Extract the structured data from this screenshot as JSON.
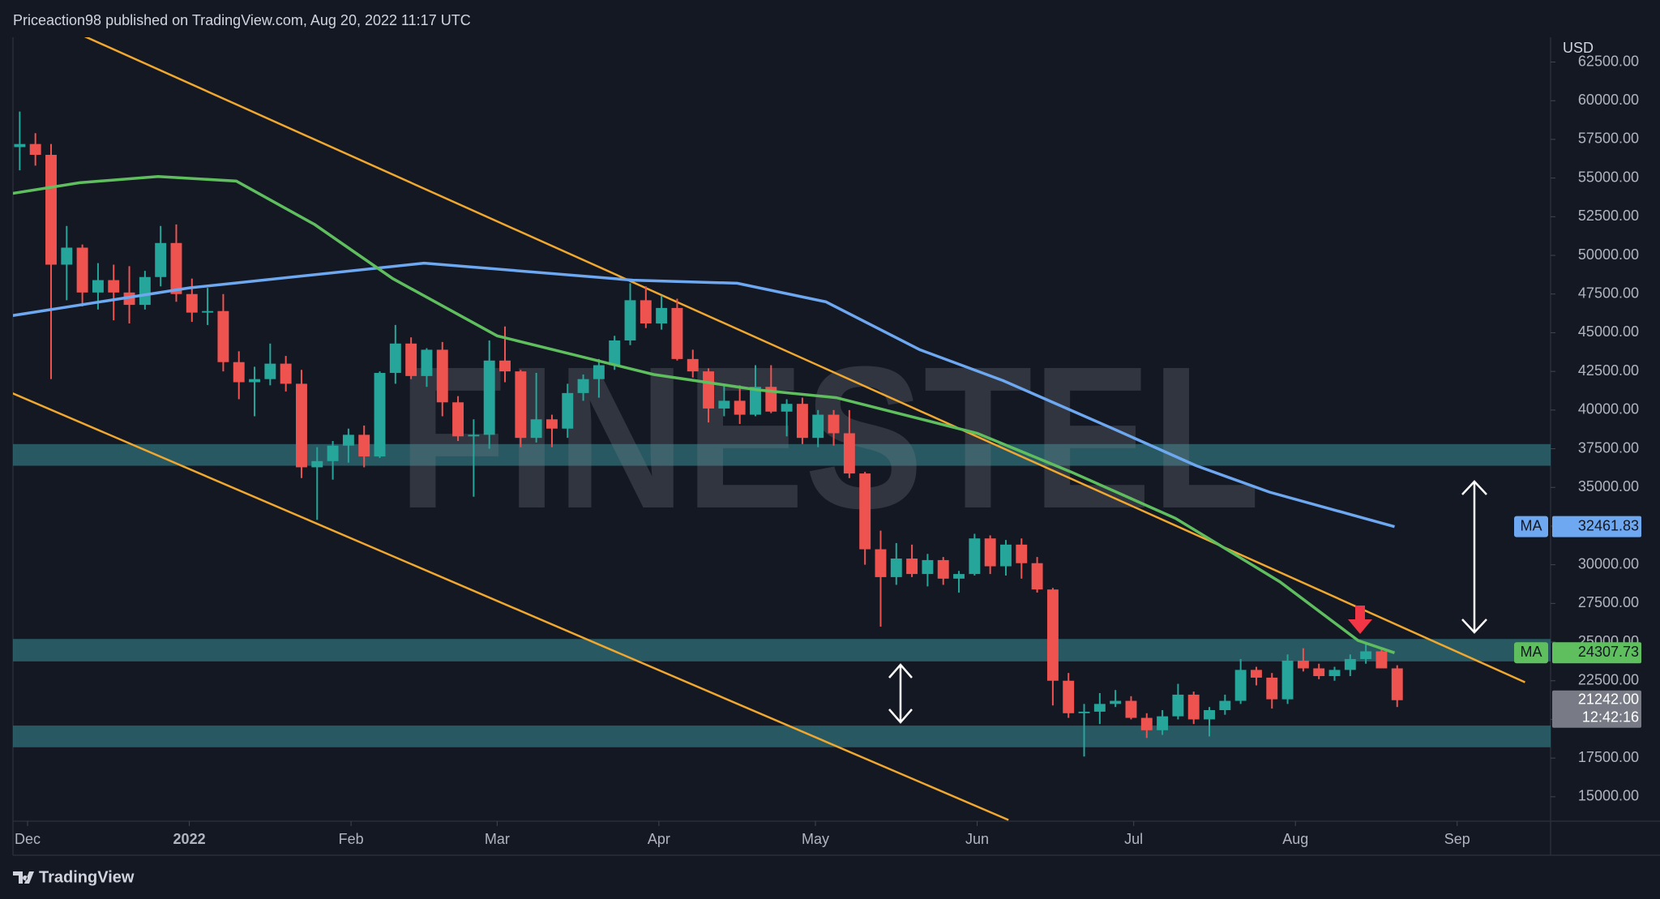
{
  "chart_data": {
    "type": "candlestick",
    "header": "Priceaction98 published on TradingView.com, Aug 20, 2022 11:17 UTC",
    "currency": "USD",
    "watermark": "FINESTEL",
    "footer": "TradingView",
    "up_color": "#26a69a",
    "down_color": "#ef5350",
    "grid": false,
    "xlim": [
      -2.8,
      291.9
    ],
    "ylim": [
      13420,
      64100
    ],
    "xticks": [
      {
        "value": 0,
        "label": "Dec"
      },
      {
        "value": 31,
        "label": "2022"
      },
      {
        "value": 62,
        "label": "Feb"
      },
      {
        "value": 90,
        "label": "Mar"
      },
      {
        "value": 121,
        "label": "Apr"
      },
      {
        "value": 151,
        "label": "May"
      },
      {
        "value": 182,
        "label": "Jun"
      },
      {
        "value": 212,
        "label": "Jul"
      },
      {
        "value": 243,
        "label": "Aug"
      },
      {
        "value": 274,
        "label": "Sep"
      }
    ],
    "yticks": [
      {
        "value": 15000,
        "label": "15000.00"
      },
      {
        "value": 17500,
        "label": "17500.00"
      },
      {
        "value": 20000,
        "label": "20000.00"
      },
      {
        "value": 22500,
        "label": "22500.00"
      },
      {
        "value": 25000,
        "label": "25000.00"
      },
      {
        "value": 27500,
        "label": "27500.00"
      },
      {
        "value": 30000,
        "label": "30000.00"
      },
      {
        "value": 32500,
        "label": "32500.00"
      },
      {
        "value": 35000,
        "label": "35000.00"
      },
      {
        "value": 37500,
        "label": "37500.00"
      },
      {
        "value": 40000,
        "label": "40000.00"
      },
      {
        "value": 42500,
        "label": "42500.00"
      },
      {
        "value": 45000,
        "label": "45000.00"
      },
      {
        "value": 47500,
        "label": "47500.00"
      },
      {
        "value": 50000,
        "label": "50000.00"
      },
      {
        "value": 52500,
        "label": "52500.00"
      },
      {
        "value": 55000,
        "label": "55000.00"
      },
      {
        "value": 57500,
        "label": "57500.00"
      },
      {
        "value": 60000,
        "label": "60000.00"
      },
      {
        "value": 62500,
        "label": "62500.00"
      }
    ],
    "x": [
      -3,
      0,
      3,
      6,
      9,
      12,
      15,
      18,
      21,
      24,
      27,
      30,
      33,
      36,
      39,
      42,
      45,
      48,
      51,
      54,
      57,
      60,
      63,
      66,
      69,
      72,
      75,
      78,
      81,
      84,
      87,
      90,
      93,
      96,
      99,
      102,
      105,
      108,
      111,
      114,
      117,
      120,
      123,
      126,
      129,
      132,
      135,
      138,
      141,
      144,
      147,
      150,
      153,
      156,
      159,
      162,
      165,
      168,
      171,
      174,
      177,
      180,
      183,
      186,
      189,
      192,
      195,
      198,
      201,
      204,
      207,
      210,
      213,
      216,
      219,
      222,
      225,
      228,
      231,
      234,
      237,
      240,
      243,
      246,
      249,
      252,
      255,
      258,
      261
    ],
    "ohlc": [
      [
        57000,
        59300,
        55500,
        57200
      ],
      [
        57200,
        57900,
        55800,
        56500
      ],
      [
        56500,
        57200,
        42000,
        49400
      ],
      [
        49400,
        51900,
        47100,
        50500
      ],
      [
        50500,
        50700,
        46700,
        47600
      ],
      [
        47600,
        49500,
        46500,
        48400
      ],
      [
        48400,
        49400,
        45800,
        47600
      ],
      [
        47600,
        49300,
        45600,
        46800
      ],
      [
        46800,
        49000,
        46500,
        48600
      ],
      [
        48600,
        51900,
        48000,
        50800
      ],
      [
        50800,
        52000,
        47000,
        47500
      ],
      [
        47500,
        48500,
        45700,
        46300
      ],
      [
        46300,
        47900,
        45500,
        46400
      ],
      [
        46400,
        47500,
        42500,
        43100
      ],
      [
        43100,
        43800,
        40700,
        41800
      ],
      [
        41800,
        42800,
        39600,
        42000
      ],
      [
        42000,
        44300,
        41600,
        43000
      ],
      [
        43000,
        43500,
        41200,
        41700
      ],
      [
        41700,
        42600,
        35600,
        36300
      ],
      [
        36300,
        37600,
        32900,
        36700
      ],
      [
        36700,
        38000,
        35500,
        37700
      ],
      [
        37700,
        38800,
        36600,
        38400
      ],
      [
        38400,
        39000,
        36300,
        37000
      ],
      [
        37000,
        42500,
        36900,
        42400
      ],
      [
        42400,
        45500,
        41700,
        44300
      ],
      [
        44300,
        44700,
        42000,
        42200
      ],
      [
        42200,
        44000,
        41500,
        43900
      ],
      [
        43900,
        44400,
        39600,
        40500
      ],
      [
        40500,
        40900,
        38000,
        38300
      ],
      [
        38300,
        39400,
        34400,
        38400
      ],
      [
        38400,
        44500,
        37500,
        43200
      ],
      [
        43200,
        45400,
        41800,
        42500
      ],
      [
        42500,
        42600,
        37600,
        38200
      ],
      [
        38200,
        42400,
        37900,
        39400
      ],
      [
        39400,
        39700,
        37600,
        38800
      ],
      [
        38800,
        41700,
        38200,
        41100
      ],
      [
        41100,
        42300,
        40600,
        42000
      ],
      [
        42000,
        43300,
        40800,
        42900
      ],
      [
        42900,
        44800,
        42600,
        44500
      ],
      [
        44500,
        48200,
        44200,
        47100
      ],
      [
        47100,
        48000,
        45300,
        45600
      ],
      [
        45600,
        47400,
        45200,
        46600
      ],
      [
        46600,
        47200,
        43200,
        43300
      ],
      [
        43300,
        43900,
        42100,
        42500
      ],
      [
        42500,
        42700,
        39200,
        40100
      ],
      [
        40100,
        41600,
        39600,
        40600
      ],
      [
        40600,
        41600,
        39100,
        39700
      ],
      [
        39700,
        42900,
        39600,
        41500
      ],
      [
        41500,
        42900,
        39800,
        39900
      ],
      [
        39900,
        40700,
        38300,
        40400
      ],
      [
        40400,
        40800,
        37800,
        38200
      ],
      [
        38200,
        40000,
        37600,
        39700
      ],
      [
        39700,
        40000,
        37700,
        38500
      ],
      [
        38500,
        40000,
        35600,
        35900
      ],
      [
        35900,
        36000,
        30000,
        31000
      ],
      [
        31000,
        32200,
        26000,
        29200
      ],
      [
        29200,
        31400,
        28700,
        30400
      ],
      [
        30400,
        31300,
        29200,
        29400
      ],
      [
        29400,
        30700,
        28600,
        30300
      ],
      [
        30300,
        30500,
        28700,
        29100
      ],
      [
        29100,
        29600,
        28200,
        29400
      ],
      [
        29400,
        32000,
        29300,
        31700
      ],
      [
        31700,
        31900,
        29400,
        29900
      ],
      [
        29900,
        31600,
        29300,
        31300
      ],
      [
        31300,
        31700,
        29100,
        30100
      ],
      [
        30100,
        30500,
        28200,
        28400
      ],
      [
        28400,
        28500,
        20900,
        22500
      ],
      [
        22500,
        23000,
        20100,
        20400
      ],
      [
        20400,
        21000,
        17600,
        20500
      ],
      [
        20500,
        21700,
        19700,
        21000
      ],
      [
        21000,
        21900,
        20800,
        21200
      ],
      [
        21200,
        21500,
        20000,
        20100
      ],
      [
        20100,
        20400,
        18800,
        19300
      ],
      [
        19300,
        20600,
        19000,
        20200
      ],
      [
        20200,
        22300,
        20000,
        21600
      ],
      [
        21600,
        21800,
        19700,
        20000
      ],
      [
        20000,
        20800,
        18900,
        20600
      ],
      [
        20600,
        21600,
        20300,
        21200
      ],
      [
        21200,
        23900,
        21000,
        23200
      ],
      [
        23200,
        23400,
        22200,
        22700
      ],
      [
        22700,
        23000,
        20700,
        21300
      ],
      [
        21300,
        24200,
        21000,
        23800
      ],
      [
        23800,
        24600,
        23100,
        23300
      ],
      [
        23300,
        23600,
        22600,
        22800
      ],
      [
        22800,
        23400,
        22500,
        23200
      ],
      [
        23200,
        24200,
        22800,
        23900
      ],
      [
        23900,
        25000,
        23600,
        24400
      ],
      [
        24400,
        24500,
        23400,
        23300
      ],
      [
        23300,
        23500,
        20800,
        21242
      ]
    ],
    "price_label": "21242.00",
    "countdown": "12:42:16",
    "series": [
      {
        "name": "MA",
        "color": "#6ea8f0",
        "last_label": "32461.83",
        "x": [
          -3,
          31,
          76,
          116,
          136,
          153,
          171,
          187,
          208,
          224,
          238,
          262
        ],
        "values": [
          46100,
          47900,
          49500,
          48400,
          48200,
          47000,
          43900,
          41900,
          38800,
          36400,
          34700,
          32461.83
        ]
      },
      {
        "name": "MA",
        "color": "#5fbf5f",
        "last_label": "24307.73",
        "x": [
          -3,
          10,
          25,
          40,
          55,
          70,
          90,
          120,
          140,
          155,
          182,
          200,
          220,
          240,
          255,
          262
        ],
        "values": [
          54000,
          54700,
          55100,
          54800,
          52000,
          48500,
          44800,
          42300,
          41300,
          40800,
          38500,
          36000,
          33000,
          28900,
          25100,
          24307.73
        ]
      }
    ],
    "zones": [
      [
        36400,
        37800
      ],
      [
        23750,
        25200
      ],
      [
        18200,
        19600
      ]
    ],
    "zone_color": "#2f6f78",
    "trendlines": [
      {
        "color": "#f0a830",
        "x": [
          10,
          287
        ],
        "y": [
          64300,
          22400
        ]
      },
      {
        "color": "#f0a830",
        "x": [
          -3,
          188
        ],
        "y": [
          41100,
          13500
        ]
      }
    ]
  }
}
